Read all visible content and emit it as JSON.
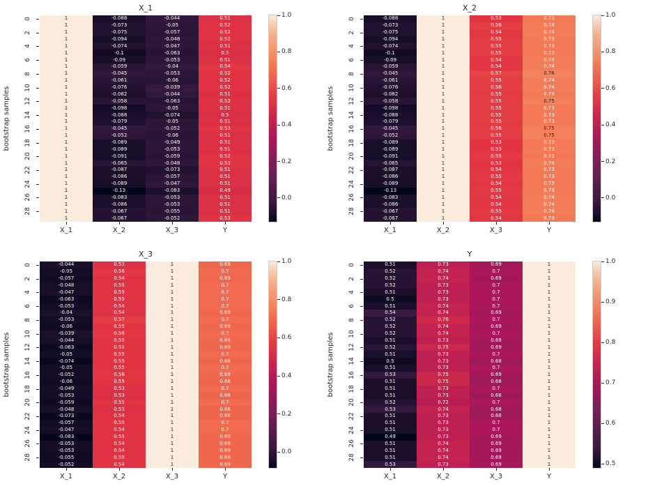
{
  "figure": {
    "background": "#ffffff",
    "x_ticks": [
      "X_1",
      "X_2",
      "X_3",
      "Y"
    ],
    "y_ticks": [
      0,
      2,
      4,
      6,
      8,
      10,
      12,
      14,
      16,
      18,
      20,
      22,
      24,
      26,
      28
    ],
    "n_rows": 30,
    "ylabel": "bootstrap samples"
  },
  "colormap": {
    "name": "rocket",
    "text_luminance_threshold": 0.35,
    "annot_dark_text": "#262626",
    "annot_light_text": "#ffffff",
    "stops": [
      [
        0.0,
        "#03051A"
      ],
      [
        0.083,
        "#35193E"
      ],
      [
        0.25,
        "#701F57"
      ],
      [
        0.417,
        "#AD1759"
      ],
      [
        0.583,
        "#E13342"
      ],
      [
        0.75,
        "#F37651"
      ],
      [
        0.917,
        "#F6B48F"
      ],
      [
        1.0,
        "#FAEBDD"
      ]
    ]
  },
  "chart_data": [
    {
      "type": "heatmap",
      "title": "X_1",
      "ylabel": "bootstrap samples",
      "columns": [
        "X_1",
        "X_2",
        "X_3",
        "Y"
      ],
      "vmin": -0.13,
      "vmax": 1.0,
      "colorbar_ticks": [
        {
          "label": "1.0",
          "value": 1.0
        },
        {
          "label": "0.8",
          "value": 0.8
        },
        {
          "label": "0.6",
          "value": 0.6
        },
        {
          "label": "0.4",
          "value": 0.4
        },
        {
          "label": "0.2",
          "value": 0.2
        },
        {
          "label": "0.0",
          "value": 0.0
        }
      ],
      "rows": [
        [
          1,
          -0.088,
          -0.044,
          0.51
        ],
        [
          1,
          -0.073,
          -0.05,
          0.52
        ],
        [
          1,
          -0.075,
          -0.057,
          0.52
        ],
        [
          1,
          -0.094,
          -0.048,
          0.52
        ],
        [
          1,
          -0.074,
          -0.047,
          0.51
        ],
        [
          1,
          -0.1,
          -0.063,
          0.5
        ],
        [
          1,
          -0.09,
          -0.053,
          0.51
        ],
        [
          1,
          -0.059,
          -0.04,
          0.54
        ],
        [
          1,
          -0.045,
          -0.053,
          0.52
        ],
        [
          1,
          -0.061,
          -0.06,
          0.52
        ],
        [
          1,
          -0.076,
          -0.039,
          0.52
        ],
        [
          1,
          -0.082,
          -0.044,
          0.51
        ],
        [
          1,
          -0.058,
          -0.063,
          0.52
        ],
        [
          1,
          -0.098,
          -0.05,
          0.51
        ],
        [
          1,
          -0.088,
          -0.074,
          0.5
        ],
        [
          1,
          -0.079,
          -0.05,
          0.51
        ],
        [
          1,
          -0.045,
          -0.052,
          0.53
        ],
        [
          1,
          -0.052,
          -0.06,
          0.51
        ],
        [
          1,
          -0.089,
          -0.049,
          0.51
        ],
        [
          1,
          -0.089,
          -0.053,
          0.51
        ],
        [
          1,
          -0.091,
          -0.059,
          0.52
        ],
        [
          1,
          -0.065,
          -0.048,
          0.53
        ],
        [
          1,
          -0.087,
          -0.073,
          0.51
        ],
        [
          1,
          -0.086,
          -0.057,
          0.51
        ],
        [
          1,
          -0.089,
          -0.047,
          0.51
        ],
        [
          1,
          -0.13,
          -0.083,
          0.49
        ],
        [
          1,
          -0.083,
          -0.053,
          0.51
        ],
        [
          1,
          -0.086,
          -0.053,
          0.51
        ],
        [
          1,
          -0.067,
          -0.055,
          0.51
        ],
        [
          1,
          -0.067,
          -0.052,
          0.53
        ]
      ]
    },
    {
      "type": "heatmap",
      "title": "X_2",
      "ylabel": "bootstrap samples",
      "columns": [
        "X_1",
        "X_2",
        "X_3",
        "Y"
      ],
      "vmin": -0.13,
      "vmax": 1.0,
      "colorbar_ticks": [
        {
          "label": "1.0",
          "value": 1.0
        },
        {
          "label": "0.8",
          "value": 0.8
        },
        {
          "label": "0.6",
          "value": 0.6
        },
        {
          "label": "0.4",
          "value": 0.4
        },
        {
          "label": "0.2",
          "value": 0.2
        },
        {
          "label": "0.0",
          "value": 0.0
        }
      ],
      "rows": [
        [
          -0.088,
          1,
          0.53,
          0.73
        ],
        [
          -0.073,
          1,
          0.56,
          0.74
        ],
        [
          -0.075,
          1,
          0.54,
          0.74
        ],
        [
          -0.094,
          1,
          0.55,
          0.73
        ],
        [
          -0.074,
          1,
          0.55,
          0.73
        ],
        [
          -0.1,
          1,
          0.55,
          0.73
        ],
        [
          -0.09,
          1,
          0.54,
          0.74
        ],
        [
          -0.059,
          1,
          0.54,
          0.74
        ],
        [
          -0.045,
          1,
          0.57,
          0.76
        ],
        [
          -0.061,
          1,
          0.55,
          0.74
        ],
        [
          -0.076,
          1,
          0.56,
          0.74
        ],
        [
          -0.082,
          1,
          0.55,
          0.73
        ],
        [
          -0.058,
          1,
          0.55,
          0.75
        ],
        [
          -0.098,
          1,
          0.55,
          0.73
        ],
        [
          -0.088,
          1,
          0.55,
          0.73
        ],
        [
          -0.079,
          1,
          0.55,
          0.73
        ],
        [
          -0.045,
          1,
          0.56,
          0.75
        ],
        [
          -0.052,
          1,
          0.55,
          0.75
        ],
        [
          -0.089,
          1,
          0.53,
          0.73
        ],
        [
          -0.089,
          1,
          0.53,
          0.73
        ],
        [
          -0.091,
          1,
          0.55,
          0.72
        ],
        [
          -0.065,
          1,
          0.53,
          0.74
        ],
        [
          -0.087,
          1,
          0.54,
          0.73
        ],
        [
          -0.086,
          1,
          0.55,
          0.73
        ],
        [
          -0.089,
          1,
          0.54,
          0.73
        ],
        [
          -0.13,
          1,
          0.55,
          0.73
        ],
        [
          -0.083,
          1,
          0.54,
          0.74
        ],
        [
          -0.086,
          1,
          0.54,
          0.74
        ],
        [
          -0.067,
          1,
          0.55,
          0.74
        ],
        [
          -0.067,
          1,
          0.54,
          0.73
        ]
      ]
    },
    {
      "type": "heatmap",
      "title": "X_3",
      "ylabel": "bootstrap samples",
      "columns": [
        "X_1",
        "X_2",
        "X_3",
        "Y"
      ],
      "vmin": -0.083,
      "vmax": 1.0,
      "colorbar_ticks": [
        {
          "label": "1.0",
          "value": 1.0
        },
        {
          "label": "0.8",
          "value": 0.8
        },
        {
          "label": "0.6",
          "value": 0.6
        },
        {
          "label": "0.4",
          "value": 0.4
        },
        {
          "label": "0.2",
          "value": 0.2
        },
        {
          "label": "0.0",
          "value": 0.0
        }
      ],
      "rows": [
        [
          -0.044,
          0.53,
          1,
          0.69
        ],
        [
          -0.05,
          0.56,
          1,
          0.7
        ],
        [
          -0.057,
          0.54,
          1,
          0.69
        ],
        [
          -0.048,
          0.55,
          1,
          0.7
        ],
        [
          -0.047,
          0.55,
          1,
          0.7
        ],
        [
          -0.063,
          0.55,
          1,
          0.7
        ],
        [
          -0.053,
          0.54,
          1,
          0.7
        ],
        [
          -0.04,
          0.54,
          1,
          0.69
        ],
        [
          -0.053,
          0.57,
          1,
          0.7
        ],
        [
          -0.06,
          0.55,
          1,
          0.69
        ],
        [
          -0.039,
          0.56,
          1,
          0.7
        ],
        [
          -0.044,
          0.55,
          1,
          0.69
        ],
        [
          -0.063,
          0.55,
          1,
          0.69
        ],
        [
          -0.05,
          0.55,
          1,
          0.7
        ],
        [
          -0.074,
          0.55,
          1,
          0.68
        ],
        [
          -0.05,
          0.55,
          1,
          0.7
        ],
        [
          -0.052,
          0.56,
          1,
          0.69
        ],
        [
          -0.06,
          0.55,
          1,
          0.68
        ],
        [
          -0.049,
          0.53,
          1,
          0.7
        ],
        [
          -0.053,
          0.53,
          1,
          0.68
        ],
        [
          -0.059,
          0.55,
          1,
          0.7
        ],
        [
          -0.048,
          0.53,
          1,
          0.68
        ],
        [
          -0.073,
          0.54,
          1,
          0.68
        ],
        [
          -0.057,
          0.55,
          1,
          0.7
        ],
        [
          -0.047,
          0.54,
          1,
          0.7
        ],
        [
          -0.083,
          0.55,
          1,
          0.69
        ],
        [
          -0.053,
          0.54,
          1,
          0.69
        ],
        [
          -0.053,
          0.54,
          1,
          0.69
        ],
        [
          -0.055,
          0.55,
          1,
          0.69
        ],
        [
          -0.052,
          0.54,
          1,
          0.69
        ]
      ]
    },
    {
      "type": "heatmap",
      "title": "Y",
      "ylabel": "bootstrap samples",
      "columns": [
        "X_1",
        "X_2",
        "X_3",
        "Y"
      ],
      "vmin": 0.49,
      "vmax": 1.0,
      "colorbar_ticks": [
        {
          "label": "1.0",
          "value": 1.0
        },
        {
          "label": "0.9",
          "value": 0.9
        },
        {
          "label": "0.8",
          "value": 0.8
        },
        {
          "label": "0.7",
          "value": 0.7
        },
        {
          "label": "0.6",
          "value": 0.6
        },
        {
          "label": "0.5",
          "value": 0.5
        }
      ],
      "rows": [
        [
          0.51,
          0.73,
          0.69,
          1
        ],
        [
          0.52,
          0.74,
          0.7,
          1
        ],
        [
          0.52,
          0.74,
          0.69,
          1
        ],
        [
          0.52,
          0.73,
          0.7,
          1
        ],
        [
          0.51,
          0.73,
          0.7,
          1
        ],
        [
          0.5,
          0.73,
          0.7,
          1
        ],
        [
          0.51,
          0.74,
          0.7,
          1
        ],
        [
          0.54,
          0.74,
          0.69,
          1
        ],
        [
          0.52,
          0.76,
          0.7,
          1
        ],
        [
          0.52,
          0.74,
          0.69,
          1
        ],
        [
          0.52,
          0.74,
          0.7,
          1
        ],
        [
          0.51,
          0.73,
          0.69,
          1
        ],
        [
          0.52,
          0.75,
          0.69,
          1
        ],
        [
          0.51,
          0.73,
          0.7,
          1
        ],
        [
          0.5,
          0.73,
          0.68,
          1
        ],
        [
          0.51,
          0.73,
          0.7,
          1
        ],
        [
          0.53,
          0.75,
          0.69,
          1
        ],
        [
          0.51,
          0.75,
          0.68,
          1
        ],
        [
          0.51,
          0.73,
          0.7,
          1
        ],
        [
          0.51,
          0.73,
          0.68,
          1
        ],
        [
          0.52,
          0.72,
          0.7,
          1
        ],
        [
          0.53,
          0.74,
          0.68,
          1
        ],
        [
          0.51,
          0.73,
          0.68,
          1
        ],
        [
          0.51,
          0.73,
          0.7,
          1
        ],
        [
          0.51,
          0.73,
          0.7,
          1
        ],
        [
          0.49,
          0.73,
          0.69,
          1
        ],
        [
          0.51,
          0.74,
          0.69,
          1
        ],
        [
          0.51,
          0.74,
          0.69,
          1
        ],
        [
          0.51,
          0.74,
          0.69,
          1
        ],
        [
          0.53,
          0.73,
          0.69,
          1
        ]
      ]
    }
  ]
}
